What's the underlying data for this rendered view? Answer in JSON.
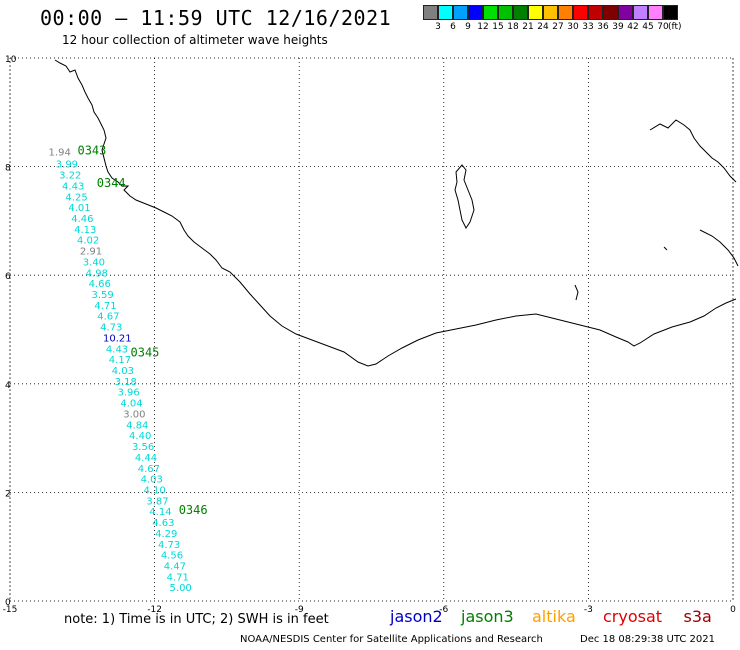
{
  "header": {
    "title": "00:00 – 11:59 UTC 12/16/2021",
    "subtitle": "12 hour collection of altimeter wave heights"
  },
  "legend": {
    "unit": "(ft)",
    "colors": [
      "#808080",
      "#00ffff",
      "#00a0ff",
      "#0000ff",
      "#00e000",
      "#00c000",
      "#008000",
      "#ffff00",
      "#ffc000",
      "#ff8000",
      "#ff0000",
      "#c00000",
      "#800000",
      "#8000a0",
      "#c080ff",
      "#ff80ff",
      "#000000"
    ],
    "labels": [
      "3",
      "6",
      "9",
      "12",
      "15",
      "18",
      "21",
      "24",
      "27",
      "30",
      "33",
      "36",
      "39",
      "42",
      "45",
      "70"
    ]
  },
  "axes": {
    "x_ticks": [
      "-15",
      "-12",
      "-9",
      "-6",
      "-3",
      "0"
    ],
    "y_ticks": [
      "0",
      "2",
      "4",
      "6",
      "8",
      "10"
    ]
  },
  "track": {
    "observations": [
      {
        "lon": -14.2,
        "lat": 8.2,
        "value": "1.94",
        "color": "#808080"
      },
      {
        "lon": -14.05,
        "lat": 7.98,
        "value": "3.99",
        "color": "#00d8d8"
      },
      {
        "lon": -13.98,
        "lat": 7.78,
        "value": "3.22",
        "color": "#00d8d8"
      },
      {
        "lon": -13.92,
        "lat": 7.58,
        "value": "4.43",
        "color": "#00d8d8"
      },
      {
        "lon": -13.85,
        "lat": 7.38,
        "value": "4.25",
        "color": "#00d8d8"
      },
      {
        "lon": -13.79,
        "lat": 7.18,
        "value": "4.01",
        "color": "#00d8d8"
      },
      {
        "lon": -13.73,
        "lat": 6.98,
        "value": "4.46",
        "color": "#00d8d8"
      },
      {
        "lon": -13.67,
        "lat": 6.78,
        "value": "4.13",
        "color": "#00d8d8"
      },
      {
        "lon": -13.61,
        "lat": 6.58,
        "value": "4.02",
        "color": "#00d8d8"
      },
      {
        "lon": -13.55,
        "lat": 6.38,
        "value": "2.91",
        "color": "#808080"
      },
      {
        "lon": -13.49,
        "lat": 6.18,
        "value": "3.40",
        "color": "#00d8d8"
      },
      {
        "lon": -13.43,
        "lat": 5.98,
        "value": "4.98",
        "color": "#00d8d8"
      },
      {
        "lon": -13.37,
        "lat": 5.78,
        "value": "4.66",
        "color": "#00d8d8"
      },
      {
        "lon": -13.31,
        "lat": 5.58,
        "value": "3.59",
        "color": "#00d8d8"
      },
      {
        "lon": -13.25,
        "lat": 5.38,
        "value": "4.71",
        "color": "#00d8d8"
      },
      {
        "lon": -13.19,
        "lat": 5.18,
        "value": "4.67",
        "color": "#00d8d8"
      },
      {
        "lon": -13.13,
        "lat": 4.98,
        "value": "4.73",
        "color": "#00d8d8"
      },
      {
        "lon": -13.07,
        "lat": 4.78,
        "value": "10.21",
        "color": "#0000c0"
      },
      {
        "lon": -13.01,
        "lat": 4.58,
        "value": "4.43",
        "color": "#00d8d8"
      },
      {
        "lon": -12.95,
        "lat": 4.38,
        "value": "4.17",
        "color": "#00d8d8"
      },
      {
        "lon": -12.89,
        "lat": 4.18,
        "value": "4.03",
        "color": "#00d8d8"
      },
      {
        "lon": -12.83,
        "lat": 3.98,
        "value": "3.18",
        "color": "#00d8d8"
      },
      {
        "lon": -12.77,
        "lat": 3.78,
        "value": "3.96",
        "color": "#00d8d8"
      },
      {
        "lon": -12.71,
        "lat": 3.58,
        "value": "4.04",
        "color": "#00d8d8"
      },
      {
        "lon": -12.65,
        "lat": 3.38,
        "value": "3.00",
        "color": "#808080"
      },
      {
        "lon": -12.59,
        "lat": 3.18,
        "value": "4.84",
        "color": "#00d8d8"
      },
      {
        "lon": -12.53,
        "lat": 2.98,
        "value": "4.40",
        "color": "#00d8d8"
      },
      {
        "lon": -12.47,
        "lat": 2.78,
        "value": "3.56",
        "color": "#00d8d8"
      },
      {
        "lon": -12.41,
        "lat": 2.58,
        "value": "4.44",
        "color": "#00d8d8"
      },
      {
        "lon": -12.35,
        "lat": 2.38,
        "value": "4.67",
        "color": "#00d8d8"
      },
      {
        "lon": -12.29,
        "lat": 2.18,
        "value": "4.03",
        "color": "#00d8d8"
      },
      {
        "lon": -12.23,
        "lat": 1.98,
        "value": "4.10",
        "color": "#00d8d8"
      },
      {
        "lon": -12.17,
        "lat": 1.78,
        "value": "3.87",
        "color": "#00d8d8"
      },
      {
        "lon": -12.11,
        "lat": 1.58,
        "value": "4.14",
        "color": "#00d8d8"
      },
      {
        "lon": -12.05,
        "lat": 1.38,
        "value": "4.63",
        "color": "#00d8d8"
      },
      {
        "lon": -11.99,
        "lat": 1.18,
        "value": "4.29",
        "color": "#00d8d8"
      },
      {
        "lon": -11.93,
        "lat": 0.98,
        "value": "4.73",
        "color": "#00d8d8"
      },
      {
        "lon": -11.87,
        "lat": 0.78,
        "value": "4.56",
        "color": "#00d8d8"
      },
      {
        "lon": -11.81,
        "lat": 0.58,
        "value": "4.47",
        "color": "#00d8d8"
      },
      {
        "lon": -11.75,
        "lat": 0.38,
        "value": "4.71",
        "color": "#00d8d8"
      },
      {
        "lon": -11.69,
        "lat": 0.18,
        "value": "5.00",
        "color": "#00d8d8"
      }
    ],
    "times": [
      {
        "lon": -13.6,
        "lat": 8.22,
        "text": "0343"
      },
      {
        "lon": -13.2,
        "lat": 7.62,
        "text": "0344"
      },
      {
        "lon": -12.5,
        "lat": 4.5,
        "text": "0345"
      },
      {
        "lon": -11.5,
        "lat": 1.6,
        "text": "0346"
      }
    ],
    "time_color": "#008000"
  },
  "footer": {
    "note": "note:  1) Time is in UTC;  2) SWH is in feet",
    "satellites": [
      {
        "name": "jason2",
        "color": "#0000c0"
      },
      {
        "name": "jason3",
        "color": "#008000"
      },
      {
        "name": "altika",
        "color": "#ffa000"
      },
      {
        "name": "cryosat",
        "color": "#e00000"
      },
      {
        "name": "s3a",
        "color": "#a00000"
      }
    ],
    "credit": "NOAA/NESDIS Center for Satellite Applications and Research",
    "timestamp": "Dec 18 08:29:38 UTC 2021"
  }
}
